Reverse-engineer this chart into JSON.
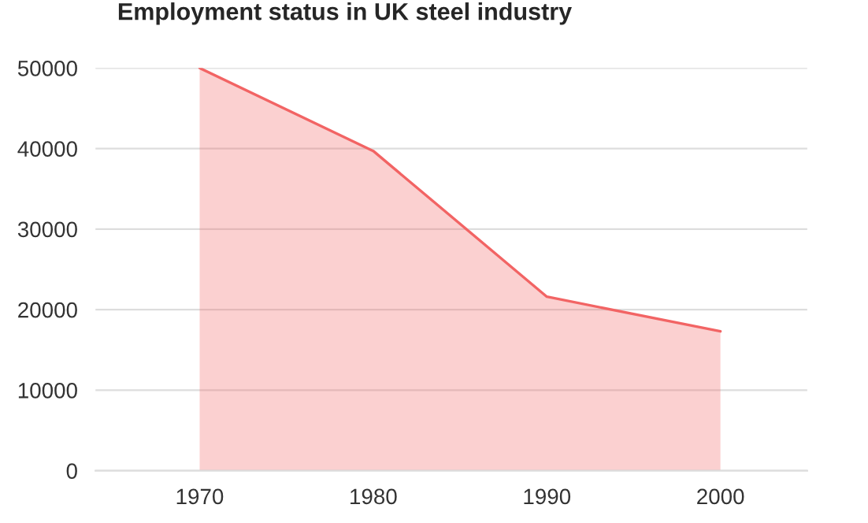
{
  "chart_data": {
    "type": "area",
    "title": "Employment status in UK steel industry",
    "categories": [
      "1970",
      "1980",
      "1990",
      "2000"
    ],
    "series": [
      {
        "color": "#f26464",
        "values": [
          50000,
          39700,
          21600,
          17300
        ]
      }
    ],
    "ylim": [
      0,
      50000
    ],
    "yticks": [
      0,
      10000,
      20000,
      30000,
      40000,
      50000
    ],
    "grid": "y",
    "legend": false
  }
}
